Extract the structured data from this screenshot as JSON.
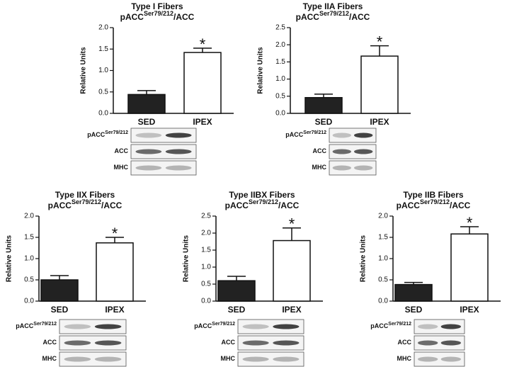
{
  "chart_data": [
    {
      "type": "bar",
      "title": "Type I Fibers",
      "subtitle": {
        "base": "pACC",
        "sup": "Ser79/212",
        "tail": "/ACC"
      },
      "ylabel": "Relative Units",
      "categories": [
        "SED",
        "IPEX"
      ],
      "values": [
        0.44,
        1.42
      ],
      "errors": [
        0.09,
        0.1
      ],
      "colors": [
        "#222222",
        "#ffffff"
      ],
      "annotation": "*",
      "ylim": [
        0,
        2
      ],
      "yticks": [
        {
          "value": 0,
          "label": "0.0"
        },
        0.5,
        {
          "value": 1,
          "label": "1.0"
        },
        1.5,
        {
          "value": 2,
          "label": "2.0"
        }
      ],
      "blot_rows": [
        {
          "label": "pACC",
          "sup": "Ser79/212"
        },
        {
          "label": "ACC"
        },
        {
          "label": "MHC"
        }
      ]
    },
    {
      "type": "bar",
      "title": "Type IIA Fibers",
      "subtitle": {
        "base": "pACC",
        "sup": "Ser79/212",
        "tail": "/ACC"
      },
      "ylabel": "Relative Units",
      "categories": [
        "SED",
        "IPEX"
      ],
      "values": [
        0.46,
        1.67
      ],
      "errors": [
        0.1,
        0.3
      ],
      "colors": [
        "#222222",
        "#ffffff"
      ],
      "annotation": "*",
      "ylim": [
        0,
        2.5
      ],
      "yticks": [
        {
          "value": 0,
          "label": "0.0"
        },
        0.5,
        {
          "value": 1,
          "label": "1.0"
        },
        1.5,
        {
          "value": 2,
          "label": "2.0"
        },
        2.5
      ],
      "blot_rows": [
        {
          "label": "pACC",
          "sup": "Ser79/212"
        },
        {
          "label": "ACC"
        },
        {
          "label": "MHC"
        }
      ]
    },
    {
      "type": "bar",
      "title": "Type IIX Fibers",
      "subtitle": {
        "base": "pACC",
        "sup": "Ser79/212",
        "tail": "/ACC"
      },
      "ylabel": "Relative Units",
      "categories": [
        "SED",
        "IPEX"
      ],
      "values": [
        0.5,
        1.37
      ],
      "errors": [
        0.1,
        0.13
      ],
      "colors": [
        "#222222",
        "#ffffff"
      ],
      "annotation": "*",
      "ylim": [
        0,
        2
      ],
      "yticks": [
        {
          "value": 0,
          "label": "0.0"
        },
        0.5,
        {
          "value": 1,
          "label": "1.0"
        },
        1.5,
        {
          "value": 2,
          "label": "2.0"
        }
      ],
      "blot_rows": [
        {
          "label": "pACC",
          "sup": "Ser79/212"
        },
        {
          "label": "ACC"
        },
        {
          "label": "MHC"
        }
      ]
    },
    {
      "type": "bar",
      "title": "Type IIBX Fibers",
      "subtitle": {
        "base": "pACC",
        "sup": "Ser79/212",
        "tail": "/ACC"
      },
      "ylabel": "Relative Units",
      "categories": [
        "SED",
        "IPEX"
      ],
      "values": [
        0.6,
        1.78
      ],
      "errors": [
        0.13,
        0.37
      ],
      "colors": [
        "#222222",
        "#ffffff"
      ],
      "annotation": "*",
      "ylim": [
        0,
        2.5
      ],
      "yticks": [
        {
          "value": 0,
          "label": "0.0"
        },
        0.5,
        {
          "value": 1,
          "label": "1.0"
        },
        1.5,
        {
          "value": 2,
          "label": "2.0"
        },
        2.5
      ],
      "blot_rows": [
        {
          "label": "pACC",
          "sup": "Ser79/212"
        },
        {
          "label": "ACC"
        },
        {
          "label": "MHC"
        }
      ]
    },
    {
      "type": "bar",
      "title": "Type IIB Fibers",
      "subtitle": {
        "base": "pACC",
        "sup": "Ser79/212",
        "tail": "/ACC"
      },
      "ylabel": "Relative Units",
      "categories": [
        "SED",
        "IPEX"
      ],
      "values": [
        0.39,
        1.58
      ],
      "errors": [
        0.05,
        0.17
      ],
      "colors": [
        "#222222",
        "#ffffff"
      ],
      "annotation": "*",
      "ylim": [
        0,
        2
      ],
      "yticks": [
        {
          "value": 0,
          "label": "0.0"
        },
        0.5,
        {
          "value": 1,
          "label": "1.0"
        },
        1.5,
        {
          "value": 2,
          "label": "2.0"
        }
      ],
      "blot_rows": [
        {
          "label": "pACC",
          "sup": "Ser79/212"
        },
        {
          "label": "ACC"
        },
        {
          "label": "MHC"
        }
      ]
    }
  ]
}
